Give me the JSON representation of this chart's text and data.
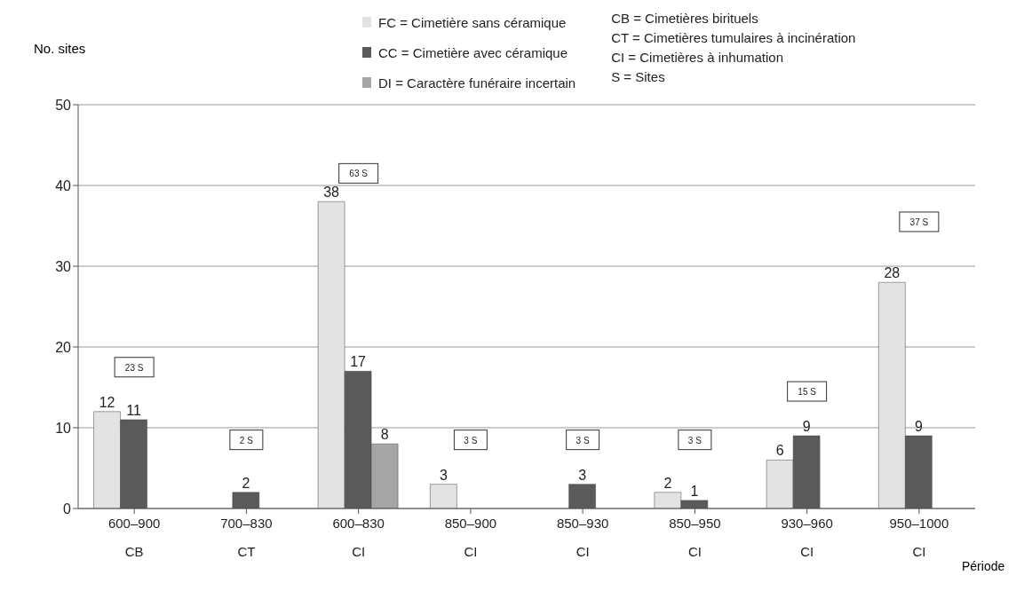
{
  "chart_data": {
    "type": "bar",
    "ylabel": "No. sites",
    "xlabel": "Période",
    "categories": [
      "600–900\nCB",
      "700–830\nCT",
      "600–830\nCI",
      "850–900\nCI",
      "850–930\nCI",
      "850–950\nCI",
      "930–960\nCI",
      "950–1000\nCI"
    ],
    "series": [
      {
        "name": "FC = Cimetière sans céramique",
        "color": "#e3e3e3",
        "values": [
          12,
          null,
          38,
          3,
          null,
          2,
          6,
          28
        ]
      },
      {
        "name": "CC = Cimetière avec céramique",
        "color": "#5a5a5a",
        "values": [
          11,
          2,
          17,
          null,
          3,
          1,
          9,
          9
        ]
      },
      {
        "name": "DI  = Caractère funéraire incertain",
        "color": "#a5a5a5",
        "values": [
          null,
          null,
          8,
          null,
          null,
          null,
          null,
          null
        ]
      }
    ],
    "ylim": [
      0,
      50
    ],
    "yticks": [
      0,
      10,
      20,
      30,
      40,
      50
    ],
    "grid": "y",
    "data_labels": true,
    "legend": "top",
    "annotations": [
      "CB = Cimetières birituels",
      "CT = Cimetières tumulaires à incinération",
      "CI = Cimetières à inhumation",
      "S = Sites",
      "23 S",
      "2 S",
      "63 S",
      "3 S",
      "3 S",
      "3 S",
      "15 S",
      "37 S"
    ]
  }
}
